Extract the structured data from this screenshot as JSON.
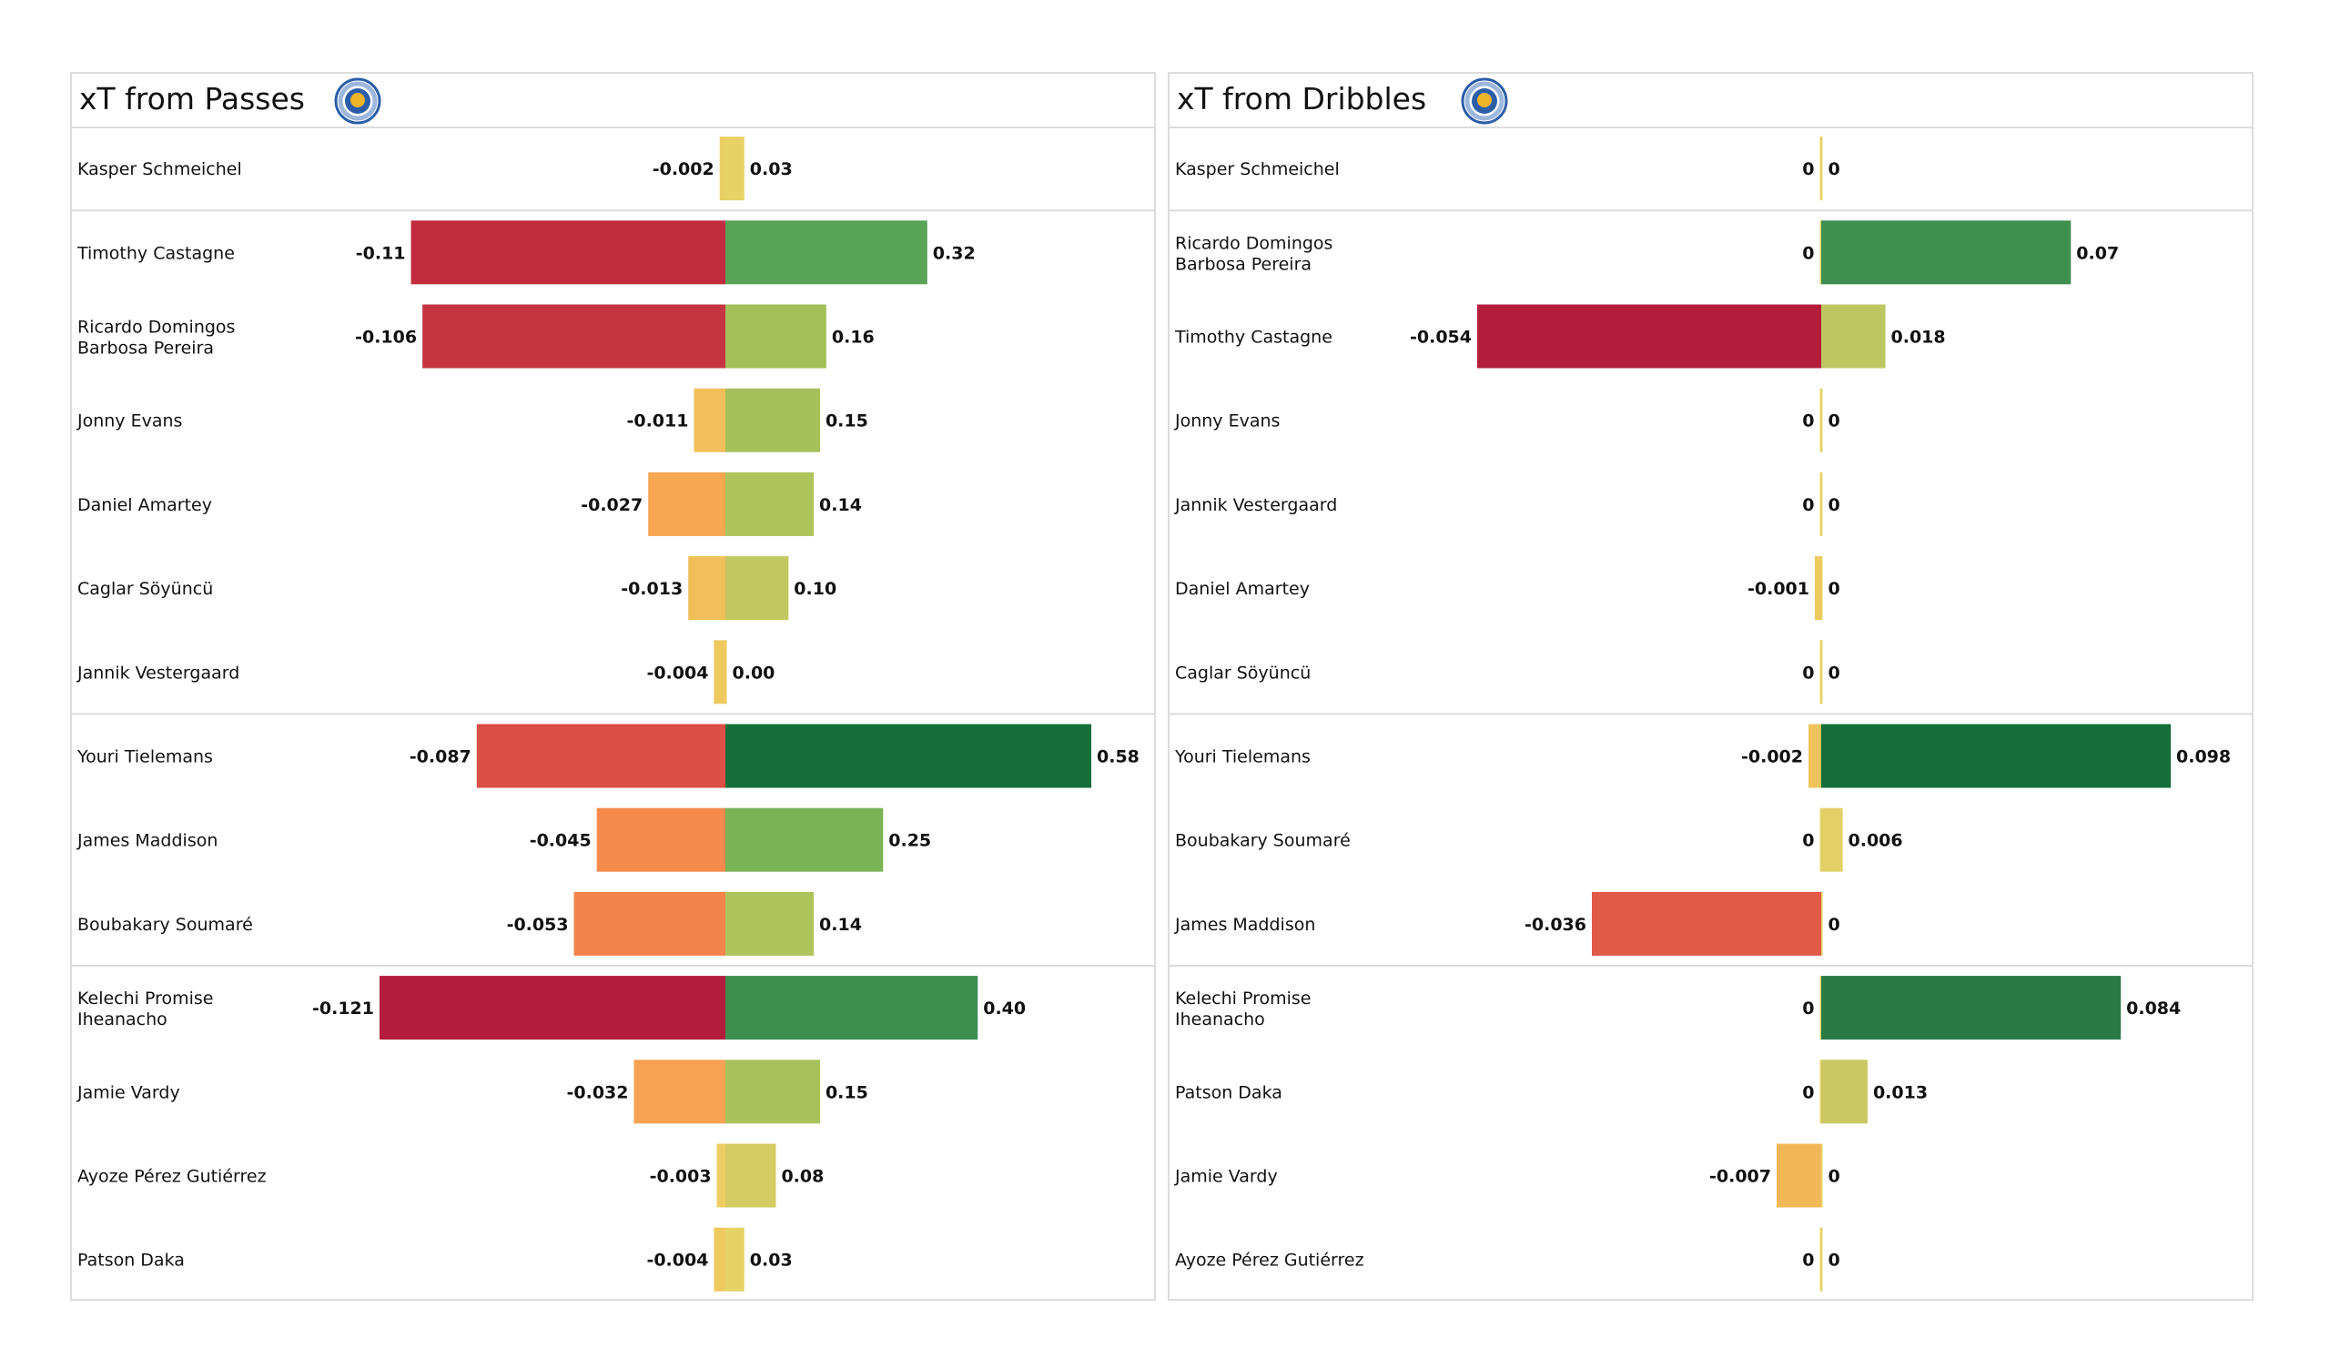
{
  "chart_data": [
    {
      "type": "bar",
      "orientation": "horizontal-diverging",
      "title": "xT from Passes",
      "logo": "leicester-city-crest",
      "groups_separated_after": [
        0,
        6,
        9
      ],
      "categories": [
        "Kasper Schmeichel",
        "Timothy Castagne",
        "Ricardo Domingos\nBarbosa Pereira",
        "Jonny Evans",
        "Daniel Amartey",
        "Caglar Söyüncü",
        "Jannik Vestergaard",
        "Youri Tielemans",
        "James Maddison",
        "Boubakary Soumaré",
        "Kelechi Promise\nIheanacho",
        "Jamie Vardy",
        "Ayoze Pérez Gutiérrez",
        "Patson Daka"
      ],
      "series": [
        {
          "name": "negative",
          "values": [
            -0.002,
            -0.11,
            -0.106,
            -0.011,
            -0.027,
            -0.013,
            -0.004,
            -0.087,
            -0.045,
            -0.053,
            -0.121,
            -0.032,
            -0.003,
            -0.004
          ],
          "labels": [
            "-0.002",
            "-0.11",
            "-0.106",
            "-0.011",
            "-0.027",
            "-0.013",
            "-0.004",
            "-0.087",
            "-0.045",
            "-0.053",
            "-0.121",
            "-0.032",
            "-0.003",
            "-0.004"
          ],
          "colors": [
            "#e9cf63",
            "#c22c3e",
            "#c63442",
            "#f0bf5a",
            "#f7a651",
            "#f0bf5a",
            "#eec95e",
            "#db4f44",
            "#f58a4c",
            "#f2844b",
            "#b41c3b",
            "#f7a152",
            "#eece62",
            "#eec95e"
          ]
        },
        {
          "name": "positive",
          "values": [
            0.03,
            0.32,
            0.16,
            0.15,
            0.14,
            0.1,
            0.0,
            0.58,
            0.25,
            0.14,
            0.4,
            0.15,
            0.08,
            0.03
          ],
          "labels": [
            "0.03",
            "0.32",
            "0.16",
            "0.15",
            "0.14",
            "0.10",
            "0.00",
            "0.58",
            "0.25",
            "0.14",
            "0.40",
            "0.15",
            "0.08",
            "0.03"
          ],
          "colors": [
            "#e7d266",
            "#58a355",
            "#a2bf59",
            "#a5bf59",
            "#aec35c",
            "#c2c75f",
            "#eec95e",
            "#156d38",
            "#7ab356",
            "#afc35c",
            "#3d8d4f",
            "#a9c15b",
            "#d4cb63",
            "#e7d266"
          ]
        }
      ],
      "xlabel": "",
      "ylabel": ""
    },
    {
      "type": "bar",
      "orientation": "horizontal-diverging",
      "title": "xT from Dribbles",
      "logo": "leicester-city-crest",
      "groups_separated_after": [
        0,
        6,
        9
      ],
      "categories": [
        "Kasper Schmeichel",
        "Ricardo Domingos\nBarbosa Pereira",
        "Timothy Castagne",
        "Jonny Evans",
        "Jannik Vestergaard",
        "Daniel Amartey",
        "Caglar Söyüncü",
        "Youri Tielemans",
        "Boubakary Soumaré",
        "James Maddison",
        "Kelechi Promise\nIheanacho",
        "Patson Daka",
        "Jamie Vardy",
        "Ayoze Pérez Gutiérrez"
      ],
      "series": [
        {
          "name": "negative",
          "values": [
            0,
            0,
            -0.054,
            0,
            0,
            -0.001,
            0,
            -0.002,
            0,
            -0.036,
            0,
            0,
            -0.007,
            0
          ],
          "labels": [
            "0",
            "0",
            "-0.054",
            "0",
            "0",
            "-0.001",
            "0",
            "-0.002",
            "0",
            "-0.036",
            "0",
            "0",
            "-0.007",
            "0"
          ],
          "colors": [
            "#e6d46a",
            "#e6d46a",
            "#b31d3b",
            "#e6d46a",
            "#e6d46a",
            "#eec95e",
            "#e6d46a",
            "#f0c35c",
            "#e6d46a",
            "#e05a47",
            "#e6d46a",
            "#e6d46a",
            "#f2b857",
            "#e6d46a"
          ]
        },
        {
          "name": "positive",
          "values": [
            0,
            0.07,
            0.018,
            0,
            0,
            0,
            0,
            0.098,
            0.006,
            0,
            0.084,
            0.013,
            0,
            0
          ],
          "labels": [
            "0",
            "0.07",
            "0.018",
            "0",
            "0",
            "0",
            "0",
            "0.098",
            "0.006",
            "0",
            "0.084",
            "0.013",
            "0",
            "0"
          ],
          "colors": [
            "#e6d46a",
            "#3e8f50",
            "#bdc762",
            "#e6d46a",
            "#e6d46a",
            "#e6d46a",
            "#e6d46a",
            "#156d38",
            "#e2cf66",
            "#e6d46a",
            "#2b7a45",
            "#cbc864",
            "#e6d46a",
            "#e6d46a"
          ]
        }
      ],
      "xlabel": "",
      "ylabel": ""
    }
  ]
}
